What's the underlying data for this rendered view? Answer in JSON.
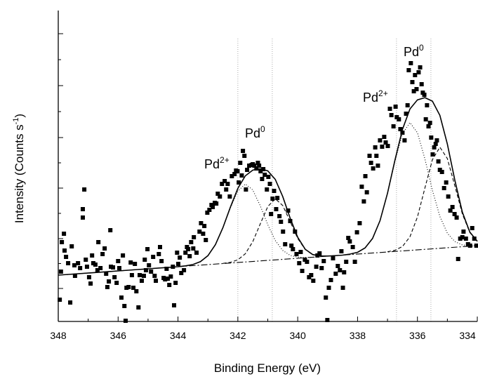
{
  "chart_data": {
    "type": "scatter",
    "xlabel": "Binding Energy (eV)",
    "ylabel": {
      "text": "Intensity (Counts s",
      "sup": "-1",
      "tail": ")"
    },
    "xlim": [
      348,
      334
    ],
    "ylim": [
      0,
      443
    ],
    "xticks": [
      348,
      346,
      344,
      342,
      340,
      338,
      336,
      334
    ],
    "xminorticks": [
      347,
      345,
      343,
      341,
      339,
      337,
      335
    ],
    "yticks": [
      47,
      118,
      190,
      262,
      336,
      410
    ],
    "yminorticks": [
      82.5,
      154,
      226,
      299,
      373
    ],
    "vlines": [
      342,
      340.85,
      336.7,
      335.55
    ],
    "vline_color": "#aaaaaa",
    "annotations": [
      {
        "text": "Pd",
        "sup": "2+"
      },
      {
        "text": "Pd",
        "sup": "0"
      },
      {
        "text": "Pd",
        "sup": "2+"
      },
      {
        "text": "Pd",
        "sup": "0"
      }
    ],
    "series": [
      {
        "style": "points",
        "color": "#000000",
        "x": [
          347.95,
          347.91,
          347.88,
          347.81,
          347.79,
          347.74,
          347.67,
          347.6,
          347.55,
          347.46,
          347.44,
          347.34,
          347.27,
          347.18,
          347.18,
          347.13,
          347.08,
          347.04,
          346.97,
          346.92,
          346.87,
          346.83,
          346.76,
          346.69,
          346.66,
          346.59,
          346.52,
          346.45,
          346.4,
          346.36,
          346.31,
          346.26,
          346.24,
          346.17,
          346.12,
          346.05,
          346.0,
          345.96,
          345.89,
          345.84,
          345.79,
          345.75,
          345.72,
          345.65,
          345.58,
          345.54,
          345.49,
          345.44,
          345.39,
          345.32,
          345.28,
          345.21,
          345.14,
          345.11,
          345.07,
          345.02,
          344.97,
          344.9,
          344.83,
          344.78,
          344.74,
          344.64,
          344.6,
          344.55,
          344.48,
          344.43,
          344.38,
          344.34,
          344.29,
          344.24,
          344.17,
          344.13,
          344.08,
          344.03,
          343.99,
          343.94,
          343.89,
          343.8,
          343.75,
          343.7,
          343.66,
          343.61,
          343.56,
          343.49,
          343.47,
          343.38,
          343.28,
          343.23,
          343.16,
          343.12,
          343.07,
          343.02,
          342.95,
          342.88,
          342.84,
          342.77,
          342.72,
          342.67,
          342.6,
          342.53,
          342.44,
          342.39,
          342.34,
          342.27,
          342.2,
          342.11,
          342.06,
          342.01,
          341.97,
          341.92,
          341.87,
          341.83,
          341.78,
          341.73,
          341.69,
          341.62,
          341.54,
          341.5,
          341.45,
          341.38,
          341.33,
          341.29,
          341.24,
          341.19,
          341.15,
          341.1,
          341.03,
          340.98,
          340.93,
          340.89,
          340.84,
          340.79,
          340.72,
          340.68,
          340.61,
          340.56,
          340.49,
          340.42,
          340.32,
          340.25,
          340.21,
          340.16,
          340.09,
          340.04,
          339.95,
          339.9,
          339.85,
          339.76,
          339.69,
          339.62,
          339.55,
          339.48,
          339.38,
          339.34,
          339.27,
          339.2,
          339.13,
          339.06,
          339.01,
          338.96,
          338.89,
          338.82,
          338.73,
          338.66,
          338.59,
          338.54,
          338.49,
          338.45,
          338.38,
          338.31,
          338.26,
          338.16,
          338.09,
          338.02,
          337.93,
          337.86,
          337.79,
          337.74,
          337.69,
          337.6,
          337.55,
          337.48,
          337.41,
          337.37,
          337.32,
          337.25,
          337.18,
          337.11,
          337.06,
          336.99,
          336.92,
          336.87,
          336.8,
          336.73,
          336.69,
          336.62,
          336.57,
          336.5,
          336.43,
          336.38,
          336.33,
          336.29,
          336.22,
          336.17,
          336.12,
          336.08,
          336.03,
          335.96,
          335.91,
          335.86,
          335.82,
          335.77,
          335.72,
          335.68,
          335.63,
          335.58,
          335.54,
          335.49,
          335.44,
          335.39,
          335.35,
          335.3,
          335.25,
          335.18,
          335.11,
          335.04,
          334.97,
          334.9,
          334.83,
          334.76,
          334.69,
          334.64,
          334.57,
          334.5,
          334.46,
          334.38,
          334.31,
          334.24,
          334.17,
          334.1,
          334.03
        ],
        "values": [
          31,
          71,
          113,
          125,
          101,
          92,
          83,
          27,
          107,
          80,
          65,
          83,
          76,
          160,
          148,
          188,
          88,
          78,
          63,
          54,
          94,
          83,
          81,
          73,
          113,
          76,
          96,
          104,
          68,
          49,
          57,
          130,
          78,
          77,
          63,
          55,
          86,
          76,
          34,
          94,
          22,
          1,
          48,
          49,
          84,
          66,
          48,
          82,
          43,
          20,
          66,
          58,
          65,
          88,
          73,
          103,
          80,
          71,
          92,
          65,
          58,
          96,
          106,
          86,
          62,
          60,
          75,
          61,
          52,
          64,
          78,
          23,
          55,
          98,
          82,
          91,
          69,
          73,
          98,
          106,
          103,
          93,
          113,
          104,
          120,
          98,
          128,
          140,
          125,
          136,
          116,
          155,
          159,
          166,
          163,
          169,
          168,
          182,
          178,
          196,
          200,
          188,
          196,
          178,
          207,
          210,
          215,
          214,
          198,
          226,
          208,
          243,
          236,
          188,
          216,
          222,
          223,
          224,
          222,
          218,
          226,
          222,
          214,
          203,
          217,
          209,
          188,
          206,
          196,
          153,
          175,
          186,
          160,
          176,
          150,
          142,
          128,
          110,
          158,
          143,
          108,
          103,
          128,
          96,
          83,
          99,
          72,
          88,
          85,
          63,
          66,
          58,
          78,
          94,
          97,
          76,
          86,
          34,
          2,
          48,
          59,
          90,
          68,
          79,
          73,
          100,
          48,
          70,
          85,
          119,
          114,
          106,
          85,
          127,
          140,
          192,
          171,
          207,
          184,
          236,
          226,
          218,
          248,
          236,
          222,
          258,
          249,
          263,
          255,
          250,
          303,
          294,
          278,
          306,
          291,
          288,
          274,
          269,
          258,
          296,
          308,
          358,
          368,
          341,
          328,
          351,
          331,
          355,
          362,
          338,
          326,
          323,
          288,
          308,
          278,
          283,
          262,
          238,
          248,
          253,
          258,
          228,
          216,
          213,
          190,
          198,
          178,
          158,
          163,
          153,
          148,
          89,
          118,
          120,
          128,
          118,
          110,
          108,
          133,
          118,
          108
        ]
      },
      {
        "style": "solid",
        "color": "#000000",
        "x": [
          348,
          347,
          346,
          345,
          344,
          343.75,
          343.5,
          343.25,
          343,
          342.75,
          342.5,
          342.25,
          342,
          341.75,
          341.5,
          341.25,
          341,
          340.75,
          340.5,
          340.25,
          340,
          339.75,
          339.5,
          339.25,
          339,
          338.75,
          338.5,
          338.25,
          338,
          337.75,
          337.5,
          337.25,
          337,
          336.75,
          336.5,
          336.25,
          336,
          335.75,
          335.5,
          335.25,
          335,
          334.75,
          334.5,
          334.25,
          334
        ],
        "values": [
          66,
          69,
          72,
          75,
          78,
          79.2,
          81.1,
          85.2,
          93.7,
          109.4,
          133.5,
          162.8,
          189.6,
          207.5,
          215.6,
          217.6,
          214.5,
          202.4,
          177.9,
          146.9,
          119.9,
          102.9,
          95.3,
          93.3,
          93.2,
          93.75,
          94.5,
          96,
          98.5,
          104.8,
          118.2,
          143.6,
          182.7,
          230.1,
          273.7,
          302.7,
          315.7,
          318.9,
          313.9,
          293.6,
          252.7,
          201.2,
          155.8,
          127.4,
          114.3
        ]
      },
      {
        "style": "dotted",
        "color": "#000000",
        "x": [
          344,
          343.75,
          343.5,
          343.25,
          343,
          342.75,
          342.5,
          342.25,
          342,
          341.75,
          341.5,
          341.25,
          341,
          340.75,
          340.5,
          340.25,
          340,
          339.75,
          339.5
        ],
        "values": [
          78,
          79.2,
          81.1,
          85.1,
          93.7,
          109.4,
          133.3,
          161.7,
          185.8,
          195.8,
          187.3,
          164.7,
          137.8,
          115.4,
          101.2,
          94.1,
          91.6,
          91.2,
          91.5
        ]
      },
      {
        "style": "dashed",
        "color": "#000000",
        "x": [
          342.5,
          342.25,
          342,
          341.75,
          341.5,
          341.25,
          341,
          340.75,
          340.5,
          340.25,
          340,
          339.75,
          339.5,
          339.25,
          339
        ],
        "values": [
          82.7,
          84.2,
          87.8,
          96.5,
          113.8,
          139.1,
          163.7,
          174.8,
          165.2,
          142.1,
          118.3,
          102.5,
          95.3,
          93.3,
          93.2
        ]
      },
      {
        "style": "dotted",
        "color": "#000000",
        "x": [
          338.5,
          338.25,
          338,
          337.75,
          337.5,
          337.25,
          337,
          336.75,
          336.5,
          336.25,
          336,
          335.75,
          335.5,
          335.25,
          335,
          334.75,
          334.5,
          334.25,
          334
        ],
        "values": [
          94.5,
          96,
          98.5,
          104.8,
          118.2,
          143.6,
          182.4,
          228.4,
          267.4,
          283.3,
          268.9,
          231.5,
          186.9,
          149.6,
          125.7,
          113.8,
          109,
          108,
          108
        ]
      },
      {
        "style": "dashed",
        "color": "#000000",
        "x": [
          337,
          336.75,
          336.5,
          336.25,
          336,
          335.75,
          335.5,
          335.25,
          335,
          334.75,
          334.5,
          334.25,
          334
        ],
        "values": [
          99.3,
          101.4,
          106.8,
          120.7,
          148.8,
          190.2,
          230.5,
          248.3,
          232,
          193.2,
          153.3,
          126.7,
          114.3
        ]
      },
      {
        "style": "dashdot",
        "color": "#000000",
        "x": [
          348,
          334
        ],
        "values": [
          66,
          108
        ]
      }
    ]
  }
}
